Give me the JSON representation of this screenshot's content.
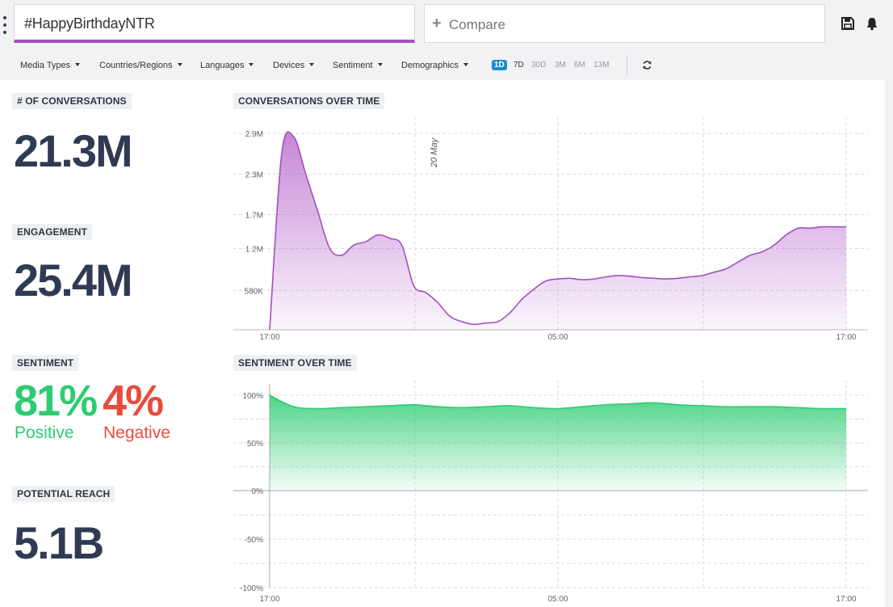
{
  "search": {
    "query": "#HappyBirthdayNTR",
    "compare_label": "Compare"
  },
  "filters": [
    "Media Types",
    "Countries/Regions",
    "Languages",
    "Devices",
    "Sentiment",
    "Demographics"
  ],
  "ranges": [
    "1D",
    "7D",
    "30D",
    "3M",
    "6M",
    "13M"
  ],
  "active_range": "1D",
  "stats": {
    "conversations": {
      "label": "# OF CONVERSATIONS",
      "value": "21.3M"
    },
    "engagement": {
      "label": "ENGAGEMENT",
      "value": "25.4M"
    },
    "sentiment": {
      "label": "SENTIMENT",
      "positive": "81%",
      "positive_label": "Positive",
      "negative": "4%",
      "negative_label": "Negative"
    },
    "reach": {
      "label": "POTENTIAL REACH",
      "value": "5.1B"
    }
  },
  "colors": {
    "accent": "#a54fbf",
    "positive": "#2ecc71",
    "negative": "#e74c3c",
    "range_active": "#1d8ac8"
  },
  "chart_data": [
    {
      "type": "area",
      "title": "CONVERSATIONS OVER TIME",
      "x_ticks": [
        "17:00",
        "05:00",
        "17:00"
      ],
      "y_ticks": [
        "580K",
        "1.2M",
        "1.7M",
        "2.3M",
        "2.9M"
      ],
      "annotation": "20 May",
      "ylim": [
        0,
        2.9
      ],
      "x": [
        0,
        0.5,
        1,
        1.5,
        2,
        2.5,
        3,
        3.5,
        4,
        4.5,
        5,
        5.5,
        6,
        6.5,
        7,
        7.5,
        8,
        8.5,
        9,
        9.5,
        10,
        10.5,
        11,
        11.5,
        12,
        12.5,
        13,
        13.5,
        14,
        14.5,
        15,
        15.5,
        16,
        16.5,
        17,
        17.5,
        18,
        18.5,
        19,
        19.5,
        20,
        20.5,
        21,
        21.5,
        22,
        22.5,
        23,
        23.5,
        24
      ],
      "values": [
        0,
        2.6,
        2.85,
        2.3,
        1.75,
        1.2,
        1.1,
        1.25,
        1.3,
        1.4,
        1.35,
        1.25,
        0.65,
        0.55,
        0.4,
        0.2,
        0.12,
        0.08,
        0.1,
        0.12,
        0.25,
        0.45,
        0.6,
        0.72,
        0.75,
        0.76,
        0.74,
        0.75,
        0.78,
        0.8,
        0.79,
        0.77,
        0.76,
        0.75,
        0.76,
        0.78,
        0.8,
        0.85,
        0.9,
        1.0,
        1.1,
        1.15,
        1.25,
        1.4,
        1.5,
        1.5,
        1.52,
        1.52,
        1.52
      ]
    },
    {
      "type": "area",
      "title": "SENTIMENT OVER TIME",
      "x_ticks": [
        "17:00",
        "05:00",
        "17:00"
      ],
      "y_ticks": [
        "100%",
        "50%",
        "0%",
        "-50%",
        "-100%"
      ],
      "ylim": [
        -100,
        100
      ],
      "x": [
        0,
        1,
        2,
        3,
        4,
        5,
        6,
        7,
        8,
        9,
        10,
        11,
        12,
        13,
        14,
        15,
        16,
        17,
        18,
        19,
        20,
        21,
        22,
        23,
        24
      ],
      "values": [
        100,
        88,
        86,
        87,
        88,
        89,
        90,
        88,
        87,
        88,
        89,
        87,
        86,
        88,
        90,
        91,
        92,
        90,
        89,
        88,
        88,
        88,
        87,
        86,
        86
      ]
    }
  ]
}
